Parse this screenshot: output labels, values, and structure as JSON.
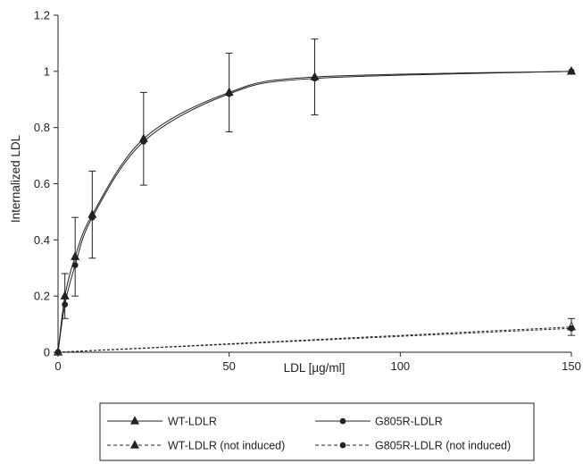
{
  "chart_data": {
    "type": "line",
    "xlabel": "LDL [µg/ml]",
    "ylabel": "Internalized LDL",
    "xlim": [
      0,
      150
    ],
    "ylim": [
      0,
      1.2
    ],
    "x_ticks": [
      "0",
      "50",
      "100",
      "150"
    ],
    "y_ticks": [
      "0",
      "0.2",
      "0.4",
      "0.6",
      "0.8",
      "1",
      "1.2"
    ],
    "grid": false,
    "legend_position": "bottom",
    "series": [
      {
        "name": "WT-LDLR",
        "marker": "triangle",
        "dashed": false,
        "x": [
          0,
          2,
          5,
          10,
          25,
          50,
          75,
          150
        ],
        "y": [
          0,
          0.2,
          0.34,
          0.49,
          0.76,
          0.925,
          0.98,
          1.0
        ],
        "yerr": [
          0,
          0.08,
          0.14,
          0.155,
          0.165,
          0.14,
          0.135,
          0
        ]
      },
      {
        "name": "G805R-LDLR",
        "marker": "circle",
        "dashed": false,
        "x": [
          0,
          2,
          5,
          10,
          25,
          50,
          75,
          150
        ],
        "y": [
          0,
          0.17,
          0.31,
          0.48,
          0.75,
          0.92,
          0.975,
          1.0
        ],
        "yerr": [
          0,
          0,
          0,
          0,
          0,
          0,
          0,
          0
        ]
      },
      {
        "name": "WT-LDLR (not induced)",
        "marker": "triangle-open",
        "dashed": true,
        "x": [
          0,
          150
        ],
        "y": [
          0,
          0.09
        ],
        "yerr": [
          0,
          0.03
        ]
      },
      {
        "name": "G805R-LDLR (not induced)",
        "marker": "circle",
        "dashed": true,
        "x": [
          0,
          150
        ],
        "y": [
          0,
          0.085
        ],
        "yerr": [
          0,
          0
        ]
      }
    ]
  }
}
